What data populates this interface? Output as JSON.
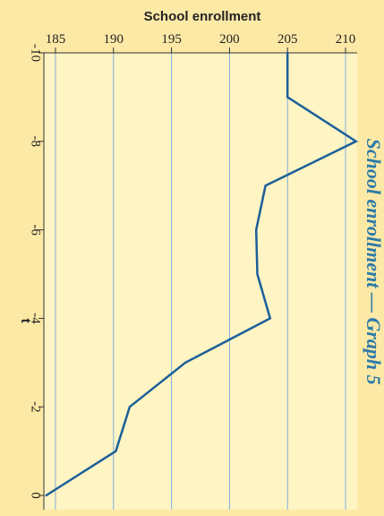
{
  "chart_data": {
    "type": "line",
    "title": "School enrollment — Graph 5",
    "xlabel": "t",
    "ylabel": "School enrollment",
    "x": [
      -10,
      -9,
      -8,
      -7,
      -6,
      -5,
      -4,
      -3,
      -2,
      -1,
      0
    ],
    "values": [
      205.0,
      205.0,
      210.9,
      203.1,
      202.3,
      202.4,
      203.5,
      196.2,
      191.4,
      190.2,
      184.2
    ],
    "xlim": [
      -10,
      0
    ],
    "ylim": [
      184,
      211
    ],
    "x_ticks": [
      -10,
      -8,
      -6,
      -4,
      -2,
      0
    ],
    "y_ticks": [
      185,
      190,
      195,
      200,
      205,
      210
    ],
    "grid": true,
    "colors": {
      "background": "#fde9a6",
      "plot_background": "#fff4c3",
      "grid": "#7faedd",
      "line": "#1b5f99",
      "title": "#2d7aa8",
      "text": "#222222"
    }
  }
}
